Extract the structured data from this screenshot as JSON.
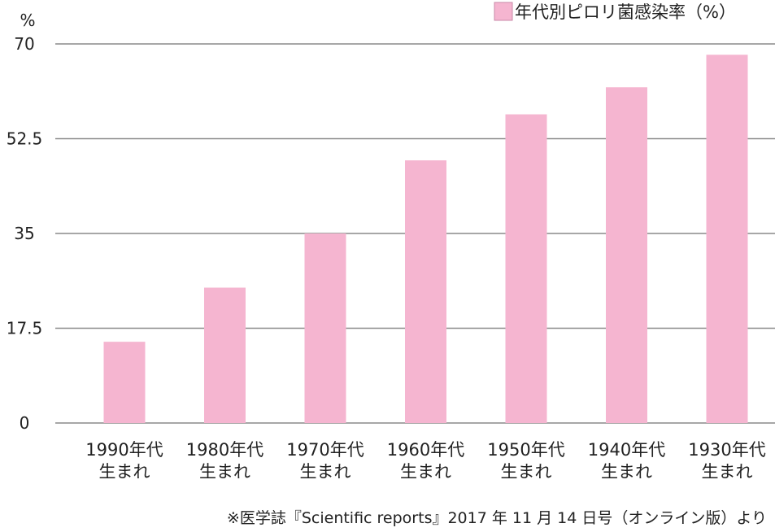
{
  "chart_data": {
    "type": "bar",
    "unit_label": "%",
    "legend": "年代別ピロリ菌感染率（%）",
    "categories": [
      [
        "1990年代",
        "生まれ"
      ],
      [
        "1980年代",
        "生まれ"
      ],
      [
        "1970年代",
        "生まれ"
      ],
      [
        "1960年代",
        "生まれ"
      ],
      [
        "1950年代",
        "生まれ"
      ],
      [
        "1940年代",
        "生まれ"
      ],
      [
        "1930年代",
        "生まれ"
      ]
    ],
    "values": [
      15,
      25,
      35,
      48.5,
      57,
      62,
      68
    ],
    "yticks": [
      "0",
      "17.5",
      "35",
      "52.5",
      "70"
    ],
    "ylim": [
      0,
      70
    ],
    "grid": true,
    "legend_position": "top-right",
    "bar_color": "#f5b5d0",
    "grid_color": "#8a8a8a"
  },
  "note": "※医学誌『Scientific reports』2017 年 11 月 14 日号（オンライン版）より"
}
